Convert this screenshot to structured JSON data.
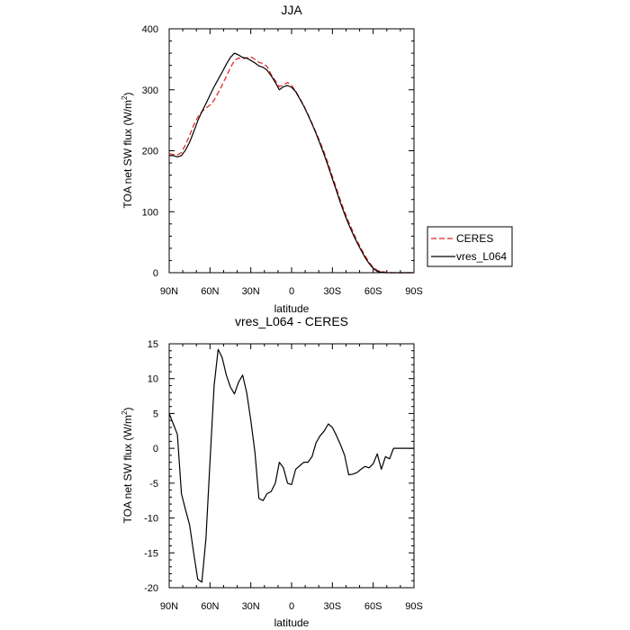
{
  "chart_data": [
    {
      "type": "line",
      "title": "JJA",
      "xlabel": "latitude",
      "ylabel_main": "TOA net SW flux (W/m",
      "ylabel_sup": "2",
      "ylabel_close": ")",
      "xlim": [
        90,
        -90
      ],
      "ylim": [
        0,
        400
      ],
      "x_tick_values": [
        90,
        60,
        30,
        0,
        -30,
        -60,
        -90
      ],
      "x_tick_labels": [
        "90N",
        "60N",
        "30N",
        "0",
        "30S",
        "60S",
        "90S"
      ],
      "y_tick_values": [
        0,
        100,
        200,
        300,
        400
      ],
      "y_tick_labels": [
        "0",
        "100",
        "200",
        "300",
        "400"
      ],
      "legend_position": "right",
      "series": [
        {
          "name": "CERES",
          "color": "#e02020",
          "dash": "dashed",
          "x": [
            90,
            87,
            84,
            81,
            78,
            75,
            72,
            69,
            66,
            63,
            60,
            57,
            54,
            51,
            48,
            45,
            42,
            39,
            36,
            33,
            30,
            27,
            24,
            21,
            18,
            15,
            12,
            9,
            6,
            3,
            0,
            -3,
            -6,
            -9,
            -12,
            -15,
            -18,
            -21,
            -24,
            -27,
            -30,
            -33,
            -36,
            -39,
            -42,
            -45,
            -48,
            -51,
            -54,
            -57,
            -60,
            -63,
            -66,
            -69,
            -72,
            -75,
            -78,
            -81,
            -84,
            -87,
            -90
          ],
          "y": [
            195,
            194,
            193,
            197,
            210,
            225,
            242,
            255,
            264,
            270,
            275,
            283,
            295,
            308,
            322,
            336,
            348,
            352,
            351,
            352,
            354,
            350,
            345,
            343,
            338,
            325,
            315,
            305,
            308,
            312,
            307,
            298,
            286,
            274,
            260,
            245,
            230,
            214,
            197,
            178,
            158,
            138,
            118,
            100,
            83,
            68,
            53,
            40,
            28,
            17,
            9,
            4,
            2,
            1,
            0,
            0,
            0,
            0,
            0,
            0,
            0
          ]
        },
        {
          "name": "vres_L064",
          "color": "#000000",
          "dash": "solid",
          "x": [
            90,
            87,
            84,
            81,
            78,
            75,
            72,
            69,
            66,
            63,
            60,
            57,
            54,
            51,
            48,
            45,
            42,
            39,
            36,
            33,
            30,
            27,
            24,
            21,
            18,
            15,
            12,
            9,
            6,
            3,
            0,
            -3,
            -6,
            -9,
            -12,
            -15,
            -18,
            -21,
            -24,
            -27,
            -30,
            -33,
            -36,
            -39,
            -42,
            -45,
            -48,
            -51,
            -54,
            -57,
            -60,
            -63,
            -66,
            -69,
            -72,
            -75,
            -78,
            -81,
            -84,
            -87,
            -90
          ],
          "y": [
            192,
            192,
            190,
            192,
            201,
            214,
            231,
            249,
            264,
            277,
            291,
            305,
            317,
            329,
            342,
            353,
            360,
            357,
            353,
            352,
            348,
            344,
            339,
            337,
            332,
            323,
            312,
            300,
            305,
            307,
            304,
            297,
            285,
            273,
            259,
            244,
            228,
            211,
            193,
            174,
            154,
            134,
            114,
            96,
            79,
            64,
            50,
            37,
            25,
            15,
            7,
            2,
            1,
            0,
            0,
            0,
            0,
            0,
            0,
            0,
            0
          ]
        }
      ]
    },
    {
      "type": "line",
      "title": "vres_L064 - CERES",
      "xlabel": "latitude",
      "ylabel_main": "TOA net SW flux (W/m",
      "ylabel_sup": "2",
      "ylabel_close": ")",
      "xlim": [
        90,
        -90
      ],
      "ylim": [
        -20,
        15
      ],
      "x_tick_values": [
        90,
        60,
        30,
        0,
        -30,
        -60,
        -90
      ],
      "x_tick_labels": [
        "90N",
        "60N",
        "30N",
        "0",
        "30S",
        "60S",
        "90S"
      ],
      "y_tick_values": [
        -20,
        -15,
        -10,
        -5,
        0,
        5,
        10,
        15
      ],
      "y_tick_labels": [
        "-20",
        "-15",
        "-10",
        "-5",
        "0",
        "5",
        "10",
        "15"
      ],
      "series": [
        {
          "name": "vres_L064 - CERES",
          "color": "#000000",
          "dash": "solid",
          "x": [
            90,
            87,
            84,
            81,
            78,
            75,
            72,
            69,
            66,
            63,
            60,
            57,
            54,
            51,
            48,
            45,
            42,
            39,
            36,
            33,
            30,
            27,
            24,
            21,
            18,
            15,
            12,
            9,
            6,
            3,
            0,
            -3,
            -6,
            -9,
            -12,
            -15,
            -18,
            -21,
            -24,
            -27,
            -30,
            -33,
            -36,
            -39,
            -42,
            -45,
            -48,
            -51,
            -54,
            -57,
            -60,
            -63,
            -66,
            -69,
            -72,
            -75,
            -78,
            -81,
            -84,
            -87,
            -90
          ],
          "y": [
            5,
            3.5,
            2,
            -6.5,
            -8.8,
            -11,
            -15,
            -18.8,
            -19.2,
            -13,
            -2,
            9,
            14.2,
            13,
            10.5,
            8.8,
            7.8,
            9.5,
            10.5,
            8,
            4,
            -0.5,
            -7.2,
            -7.5,
            -6.5,
            -6.2,
            -5,
            -2,
            -2.8,
            -5,
            -5.2,
            -3,
            -2.5,
            -2,
            -2,
            -1.2,
            0.8,
            1.8,
            2.5,
            3.5,
            3,
            1.8,
            0.5,
            -1,
            -3.8,
            -3.7,
            -3.5,
            -3,
            -2.6,
            -2.8,
            -2.2,
            -0.8,
            -3,
            -1.2,
            -1.5,
            0,
            0,
            0,
            0,
            0,
            0
          ]
        }
      ]
    }
  ]
}
